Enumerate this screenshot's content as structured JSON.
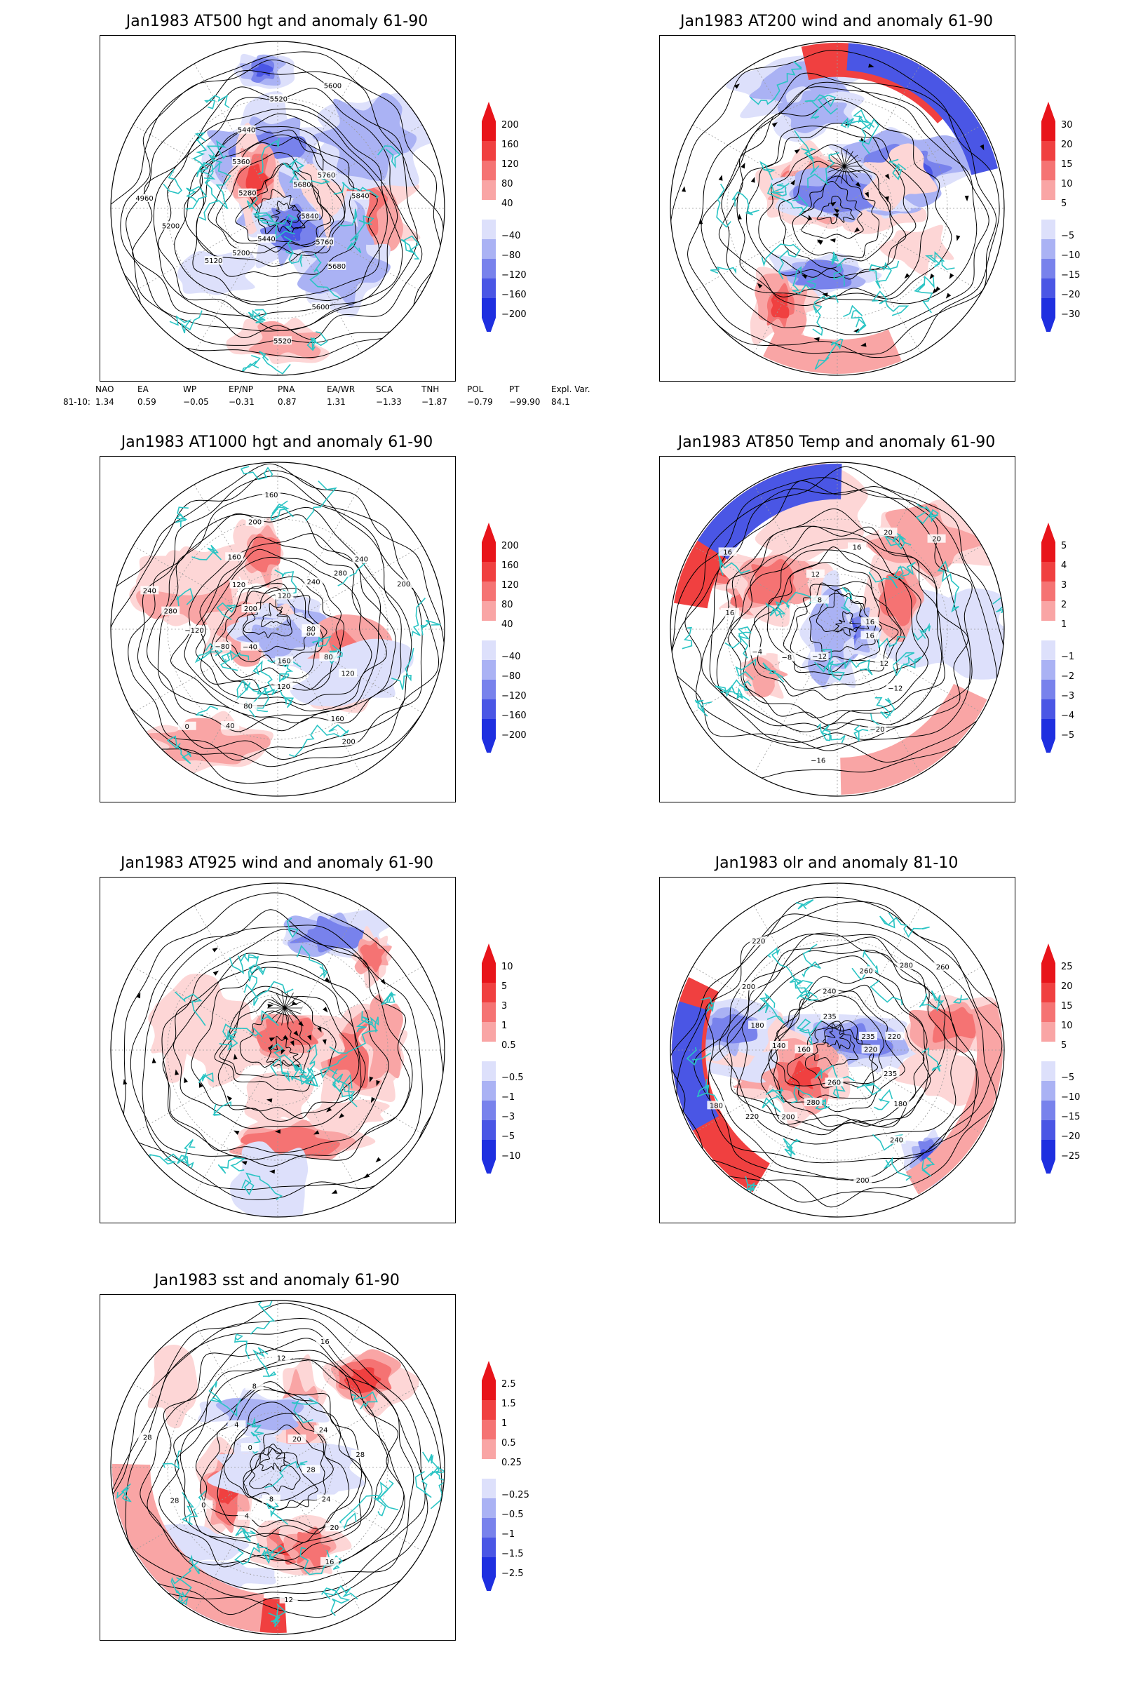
{
  "panels": [
    {
      "id": "p1",
      "title": "Jan1983 AT500 hgt and anomaly 61-90",
      "type": "contour",
      "colorbar": [
        "200",
        "160",
        "120",
        "80",
        "40",
        "−40",
        "−80",
        "−120",
        "−160",
        "−200"
      ],
      "contour_labels": [
        "5840",
        "5760",
        "5680",
        "5600",
        "5520",
        "5440",
        "5200",
        "5120",
        "5200",
        "4960",
        "5280",
        "5360",
        "5440",
        "5520",
        "5600",
        "5680",
        "5760",
        "5840"
      ]
    },
    {
      "id": "p2",
      "title": "Jan1983 AT200 wind and anomaly 61-90",
      "type": "wind",
      "colorbar": [
        "30",
        "20",
        "15",
        "10",
        "5",
        "−5",
        "−10",
        "−15",
        "−20",
        "−30"
      ],
      "contour_labels": []
    },
    {
      "id": "p3",
      "title": "Jan1983 AT1000 hgt and anomaly 61-90",
      "type": "contour",
      "colorbar": [
        "200",
        "160",
        "120",
        "80",
        "40",
        "−40",
        "−80",
        "−120",
        "−160",
        "−200"
      ],
      "contour_labels": [
        "80",
        "80",
        "120",
        "160",
        "200",
        "160",
        "120",
        "80",
        "40",
        "0",
        "−40",
        "−80",
        "−120",
        "280",
        "240",
        "200",
        "120",
        "160",
        "200",
        "160",
        "120",
        "240",
        "280",
        "240",
        "200",
        "80"
      ]
    },
    {
      "id": "p4",
      "title": "Jan1983 AT850 Temp and anomaly 61-90",
      "type": "contour",
      "colorbar": [
        "5",
        "4",
        "3",
        "2",
        "1",
        "−1",
        "−2",
        "−3",
        "−4",
        "−5"
      ],
      "contour_labels": [
        "16",
        "12",
        "−12",
        "−20",
        "−16",
        "−12",
        "−8",
        "−4",
        "16",
        "16",
        "8",
        "12",
        "16",
        "20",
        "20",
        "16"
      ]
    },
    {
      "id": "p5",
      "title": "Jan1983 AT925 wind and anomaly 61-90",
      "type": "wind",
      "colorbar": [
        "10",
        "5",
        "3",
        "1",
        "0.5",
        "−0.5",
        "−1",
        "−3",
        "−5",
        "−10"
      ],
      "contour_labels": []
    },
    {
      "id": "p6",
      "title": "Jan1983 olr and anomaly 81-10",
      "type": "contour",
      "colorbar": [
        "25",
        "20",
        "15",
        "10",
        "5",
        "−5",
        "−10",
        "−15",
        "−20",
        "−25"
      ],
      "contour_labels": [
        "220",
        "235",
        "180",
        "240",
        "200",
        "260",
        "280",
        "200",
        "220",
        "180",
        "160",
        "140",
        "180",
        "200",
        "220",
        "235",
        "240",
        "260",
        "280",
        "260",
        "235",
        "220"
      ]
    },
    {
      "id": "p7",
      "title": "Jan1983 sst and anomaly 61-90",
      "type": "contour",
      "colorbar": [
        "2.5",
        "1.5",
        "1",
        "0.5",
        "0.25",
        "−0.25",
        "−0.5",
        "−1",
        "−1.5",
        "−2.5"
      ],
      "contour_labels": [
        "28",
        "24",
        "20",
        "16",
        "12",
        "8",
        "4",
        "0",
        "28",
        "28",
        "0",
        "4",
        "8",
        "12",
        "16",
        "20",
        "24",
        "28"
      ]
    }
  ],
  "indices": {
    "headers": [
      "NAO",
      "EA",
      "WP",
      "EP/NP",
      "PNA",
      "EA/WR",
      "SCA",
      "TNH",
      "POL",
      "PT",
      "Expl. Var."
    ],
    "row_label": "81-10:",
    "values": [
      "1.34",
      "0.59",
      "−0.05",
      "−0.31",
      "0.87",
      "1.31",
      "−1.33",
      "−1.87",
      "−0.79",
      "−99.90",
      "84.1"
    ]
  },
  "colors": {
    "positive": "#e8141a",
    "negative": "#1e2fe0",
    "coast": "#2ac4c4",
    "contour": "#000000"
  }
}
